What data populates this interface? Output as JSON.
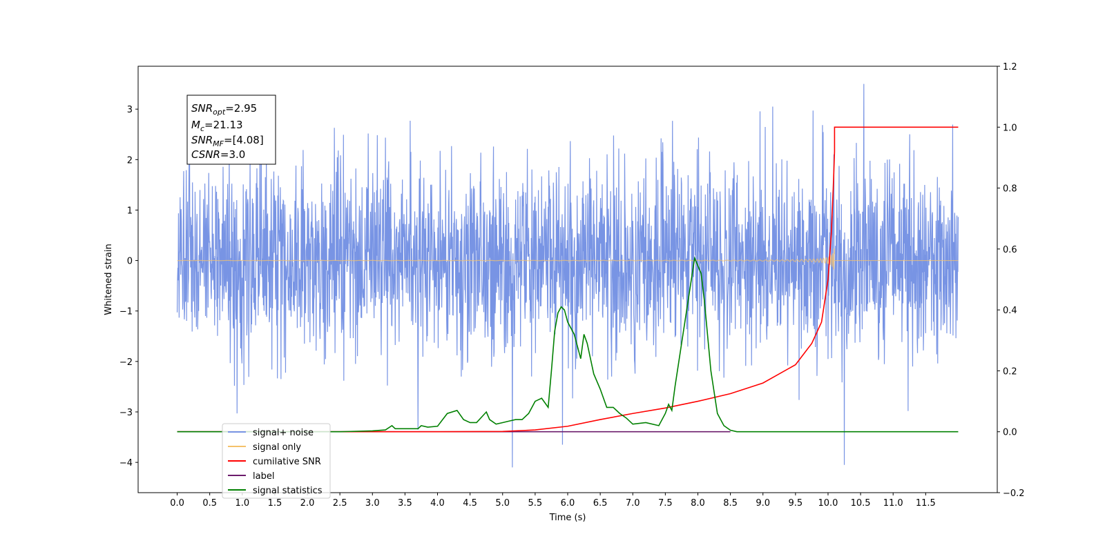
{
  "chart_data": {
    "type": "line",
    "xlabel": "Time (s)",
    "ylabel": "Whitened strain",
    "xlim": [
      -0.6,
      12.6
    ],
    "ylim": [
      -4.6,
      3.85
    ],
    "y2lim": [
      -0.2,
      1.2
    ],
    "x_ticks": [
      0.0,
      0.5,
      1.0,
      1.5,
      2.0,
      2.5,
      3.0,
      3.5,
      4.0,
      4.5,
      5.0,
      5.5,
      6.0,
      6.5,
      7.0,
      7.5,
      8.0,
      8.5,
      9.0,
      9.5,
      10.0,
      10.5,
      11.0,
      11.5
    ],
    "x_tick_labels": [
      "0.0",
      "0.5",
      "1.0",
      "1.5",
      "2.0",
      "2.5",
      "3.0",
      "3.5",
      "4.0",
      "4.5",
      "5.0",
      "5.5",
      "6.0",
      "6.5",
      "7.0",
      "7.5",
      "8.0",
      "8.5",
      "9.0",
      "9.5",
      "10.0",
      "10.5",
      "11.0",
      "11.5"
    ],
    "y_ticks": [
      -4,
      -3,
      -2,
      -1,
      0,
      1,
      2,
      3
    ],
    "y_tick_labels": [
      "−4",
      "−3",
      "−2",
      "−1",
      "0",
      "1",
      "2",
      "3"
    ],
    "y2_ticks": [
      -0.2,
      0.0,
      0.2,
      0.4,
      0.6,
      0.8,
      1.0,
      1.2
    ],
    "y2_tick_labels": [
      "−0.2",
      "0.0",
      "0.2",
      "0.4",
      "0.6",
      "0.8",
      "1.0",
      "1.2"
    ],
    "grid": false,
    "legend_placement": "lower-left",
    "annotation": {
      "snr_opt": {
        "main": "SNR",
        "sub": "opt",
        "value": "=2.95"
      },
      "mc": {
        "main": "M",
        "sub": "c",
        "value": "=21.13"
      },
      "snr_mf": {
        "main": "SNR",
        "sub": "MF",
        "value": "=[4.08]"
      },
      "csnr": {
        "main": "CSNR",
        "sub": "",
        "value": "=3.0"
      }
    },
    "series": [
      {
        "name": "signal+ noise",
        "color": "#7894e4",
        "axis": "left",
        "kind": "noise",
        "x_range": [
          0.0,
          12.0
        ],
        "sigma": 0.95,
        "notable_extremes": [
          [
            0.92,
            -3.03
          ],
          [
            5.15,
            -4.1
          ],
          [
            5.92,
            -3.65
          ],
          [
            10.25,
            -4.05
          ],
          [
            10.55,
            3.5
          ],
          [
            3.7,
            -3.35
          ]
        ]
      },
      {
        "name": "signal only",
        "color": "#f5c16a",
        "axis": "left",
        "kind": "chirp",
        "x_range": [
          0.0,
          10.1
        ],
        "end_amplitude": 0.45
      },
      {
        "name": "cumilative SNR",
        "color": "#ff0000",
        "axis": "right",
        "x": [
          0.0,
          3.0,
          4.0,
          5.0,
          5.5,
          6.0,
          6.5,
          7.0,
          7.5,
          8.0,
          8.5,
          9.0,
          9.5,
          9.75,
          9.9,
          10.0,
          10.05,
          10.08,
          10.1,
          10.1,
          12.0
        ],
        "y": [
          0.0,
          0.0,
          0.0,
          0.001,
          0.006,
          0.018,
          0.04,
          0.06,
          0.078,
          0.1,
          0.125,
          0.16,
          0.22,
          0.29,
          0.36,
          0.5,
          0.65,
          0.8,
          0.92,
          1.0,
          1.0
        ]
      },
      {
        "name": "label",
        "color": "#6b1a6b",
        "axis": "right",
        "x": [
          0.0,
          8.5
        ],
        "y": [
          0.0,
          0.0
        ]
      },
      {
        "name": "signal statistics",
        "color": "#008000",
        "axis": "right",
        "x": [
          0.0,
          2.5,
          3.0,
          3.2,
          3.3,
          3.35,
          3.5,
          3.7,
          3.75,
          3.85,
          4.0,
          4.15,
          4.3,
          4.4,
          4.5,
          4.6,
          4.75,
          4.8,
          4.9,
          5.0,
          5.1,
          5.2,
          5.3,
          5.4,
          5.5,
          5.6,
          5.7,
          5.75,
          5.8,
          5.85,
          5.9,
          5.95,
          6.0,
          6.05,
          6.1,
          6.2,
          6.25,
          6.3,
          6.35,
          6.4,
          6.5,
          6.6,
          6.7,
          6.8,
          6.9,
          7.0,
          7.2,
          7.4,
          7.5,
          7.55,
          7.6,
          7.65,
          7.8,
          7.95,
          8.05,
          8.1,
          8.2,
          8.3,
          8.4,
          8.5,
          8.6,
          12.0
        ],
        "y": [
          0.0,
          0.0,
          0.003,
          0.006,
          0.02,
          0.01,
          0.01,
          0.01,
          0.02,
          0.015,
          0.018,
          0.06,
          0.07,
          0.04,
          0.03,
          0.03,
          0.065,
          0.04,
          0.025,
          0.03,
          0.035,
          0.04,
          0.04,
          0.06,
          0.1,
          0.11,
          0.08,
          0.2,
          0.33,
          0.39,
          0.41,
          0.4,
          0.36,
          0.34,
          0.32,
          0.24,
          0.32,
          0.29,
          0.24,
          0.19,
          0.14,
          0.08,
          0.08,
          0.06,
          0.045,
          0.025,
          0.03,
          0.02,
          0.06,
          0.09,
          0.07,
          0.15,
          0.36,
          0.57,
          0.52,
          0.43,
          0.2,
          0.06,
          0.02,
          0.005,
          0.0,
          0.0
        ]
      }
    ]
  }
}
